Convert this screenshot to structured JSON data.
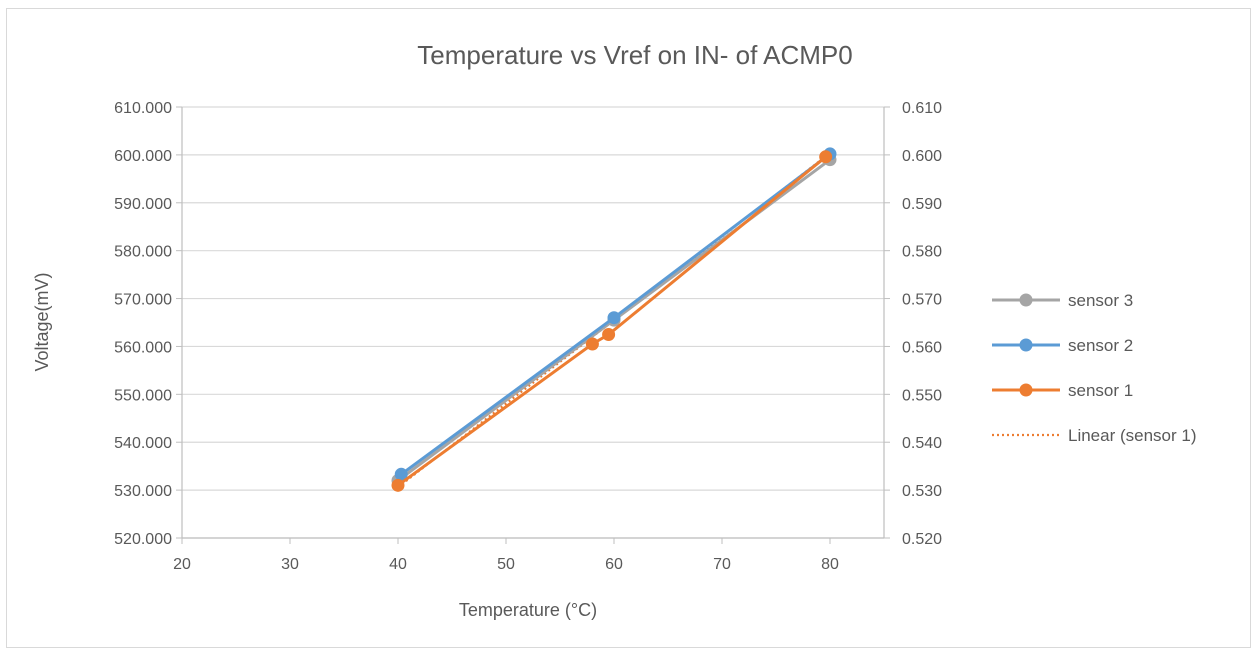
{
  "chart_data": {
    "type": "line",
    "title": "Temperature  vs Vref on IN- of ACMP0",
    "xlabel": "Temperature (°C)",
    "ylabel": "Voltage(mV)",
    "xlim": [
      20,
      85
    ],
    "ylim": [
      520,
      610
    ],
    "y2lim": [
      0.52,
      0.61
    ],
    "x_ticks": [
      "20",
      "30",
      "40",
      "50",
      "60",
      "70",
      "80"
    ],
    "y_ticks": [
      "520.000",
      "530.000",
      "540.000",
      "550.000",
      "560.000",
      "570.000",
      "580.000",
      "590.000",
      "600.000",
      "610.000"
    ],
    "y2_ticks": [
      "0.520",
      "0.530",
      "0.540",
      "0.550",
      "0.560",
      "0.570",
      "0.580",
      "0.590",
      "0.600",
      "0.610"
    ],
    "grid": "horizontal",
    "legend_position": "right",
    "series": [
      {
        "name": "sensor 3",
        "color": "#a5a5a5",
        "axis": "secondary",
        "style": "line-markers",
        "points": [
          [
            40,
            0.532
          ],
          [
            60,
            0.5655
          ],
          [
            80,
            0.599
          ]
        ]
      },
      {
        "name": "sensor 2",
        "color": "#5b9bd5",
        "axis": "primary",
        "style": "line-markers",
        "points": [
          [
            40.3,
            533.3
          ],
          [
            60,
            566.0
          ],
          [
            80,
            600.2
          ]
        ]
      },
      {
        "name": "sensor 1",
        "color": "#ed7d31",
        "axis": "primary",
        "style": "line-markers",
        "points": [
          [
            40,
            531.0
          ],
          [
            58,
            560.5
          ],
          [
            59.5,
            562.5
          ],
          [
            79.6,
            599.6
          ]
        ]
      },
      {
        "name": "Linear (sensor 1)",
        "color": "#ed7d31",
        "axis": "primary",
        "style": "dotted",
        "points": [
          [
            40,
            530.6
          ],
          [
            79.6,
            599.7
          ]
        ]
      }
    ]
  }
}
